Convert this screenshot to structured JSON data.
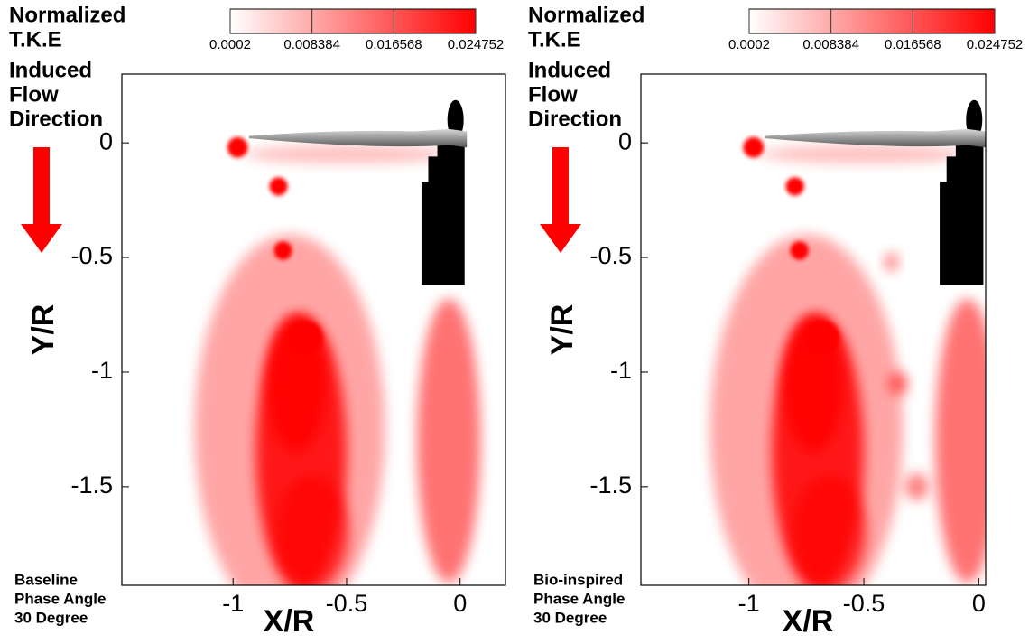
{
  "chart_data": [
    {
      "type": "contour",
      "title": [
        "Normalized",
        "T.K.E"
      ],
      "colorbar": {
        "range": [
          0.0002,
          0.024752
        ],
        "ticks": [
          0.0002,
          0.008384,
          0.016568,
          0.024752
        ],
        "colors": [
          "#ffffff",
          "#ff0000"
        ]
      },
      "annotation": [
        "Induced",
        "Flow",
        "Direction"
      ],
      "case_label": [
        "Baseline",
        "Phase Angle",
        "30 Degree"
      ],
      "xlabel": "X/R",
      "ylabel": "Y/R",
      "xlim": [
        -1.49,
        0.2
      ],
      "ylim": [
        -1.93,
        0.3
      ],
      "xticks": [
        -1,
        -0.5,
        0
      ],
      "yticks": [
        0,
        -0.5,
        -1,
        -1.5
      ],
      "color": "#ff0000"
    },
    {
      "type": "contour",
      "title": [
        "Normalized",
        "T.K.E"
      ],
      "colorbar": {
        "range": [
          0.0002,
          0.024752
        ],
        "ticks": [
          0.0002,
          0.008384,
          0.016568,
          0.024752
        ],
        "colors": [
          "#ffffff",
          "#ff0000"
        ]
      },
      "annotation": [
        "Induced",
        "Flow",
        "Direction"
      ],
      "case_label": [
        "Bio-inspired",
        "Phase Angle",
        "30 Degree"
      ],
      "xlabel": "X/R",
      "ylabel": "Y/R",
      "xlim": [
        -1.47,
        0.03
      ],
      "ylim": [
        -1.93,
        0.3
      ],
      "xticks": [
        -1,
        -0.5,
        0
      ],
      "yticks": [
        0,
        -0.5,
        -1,
        -1.5
      ],
      "color": "#ff0000"
    }
  ]
}
